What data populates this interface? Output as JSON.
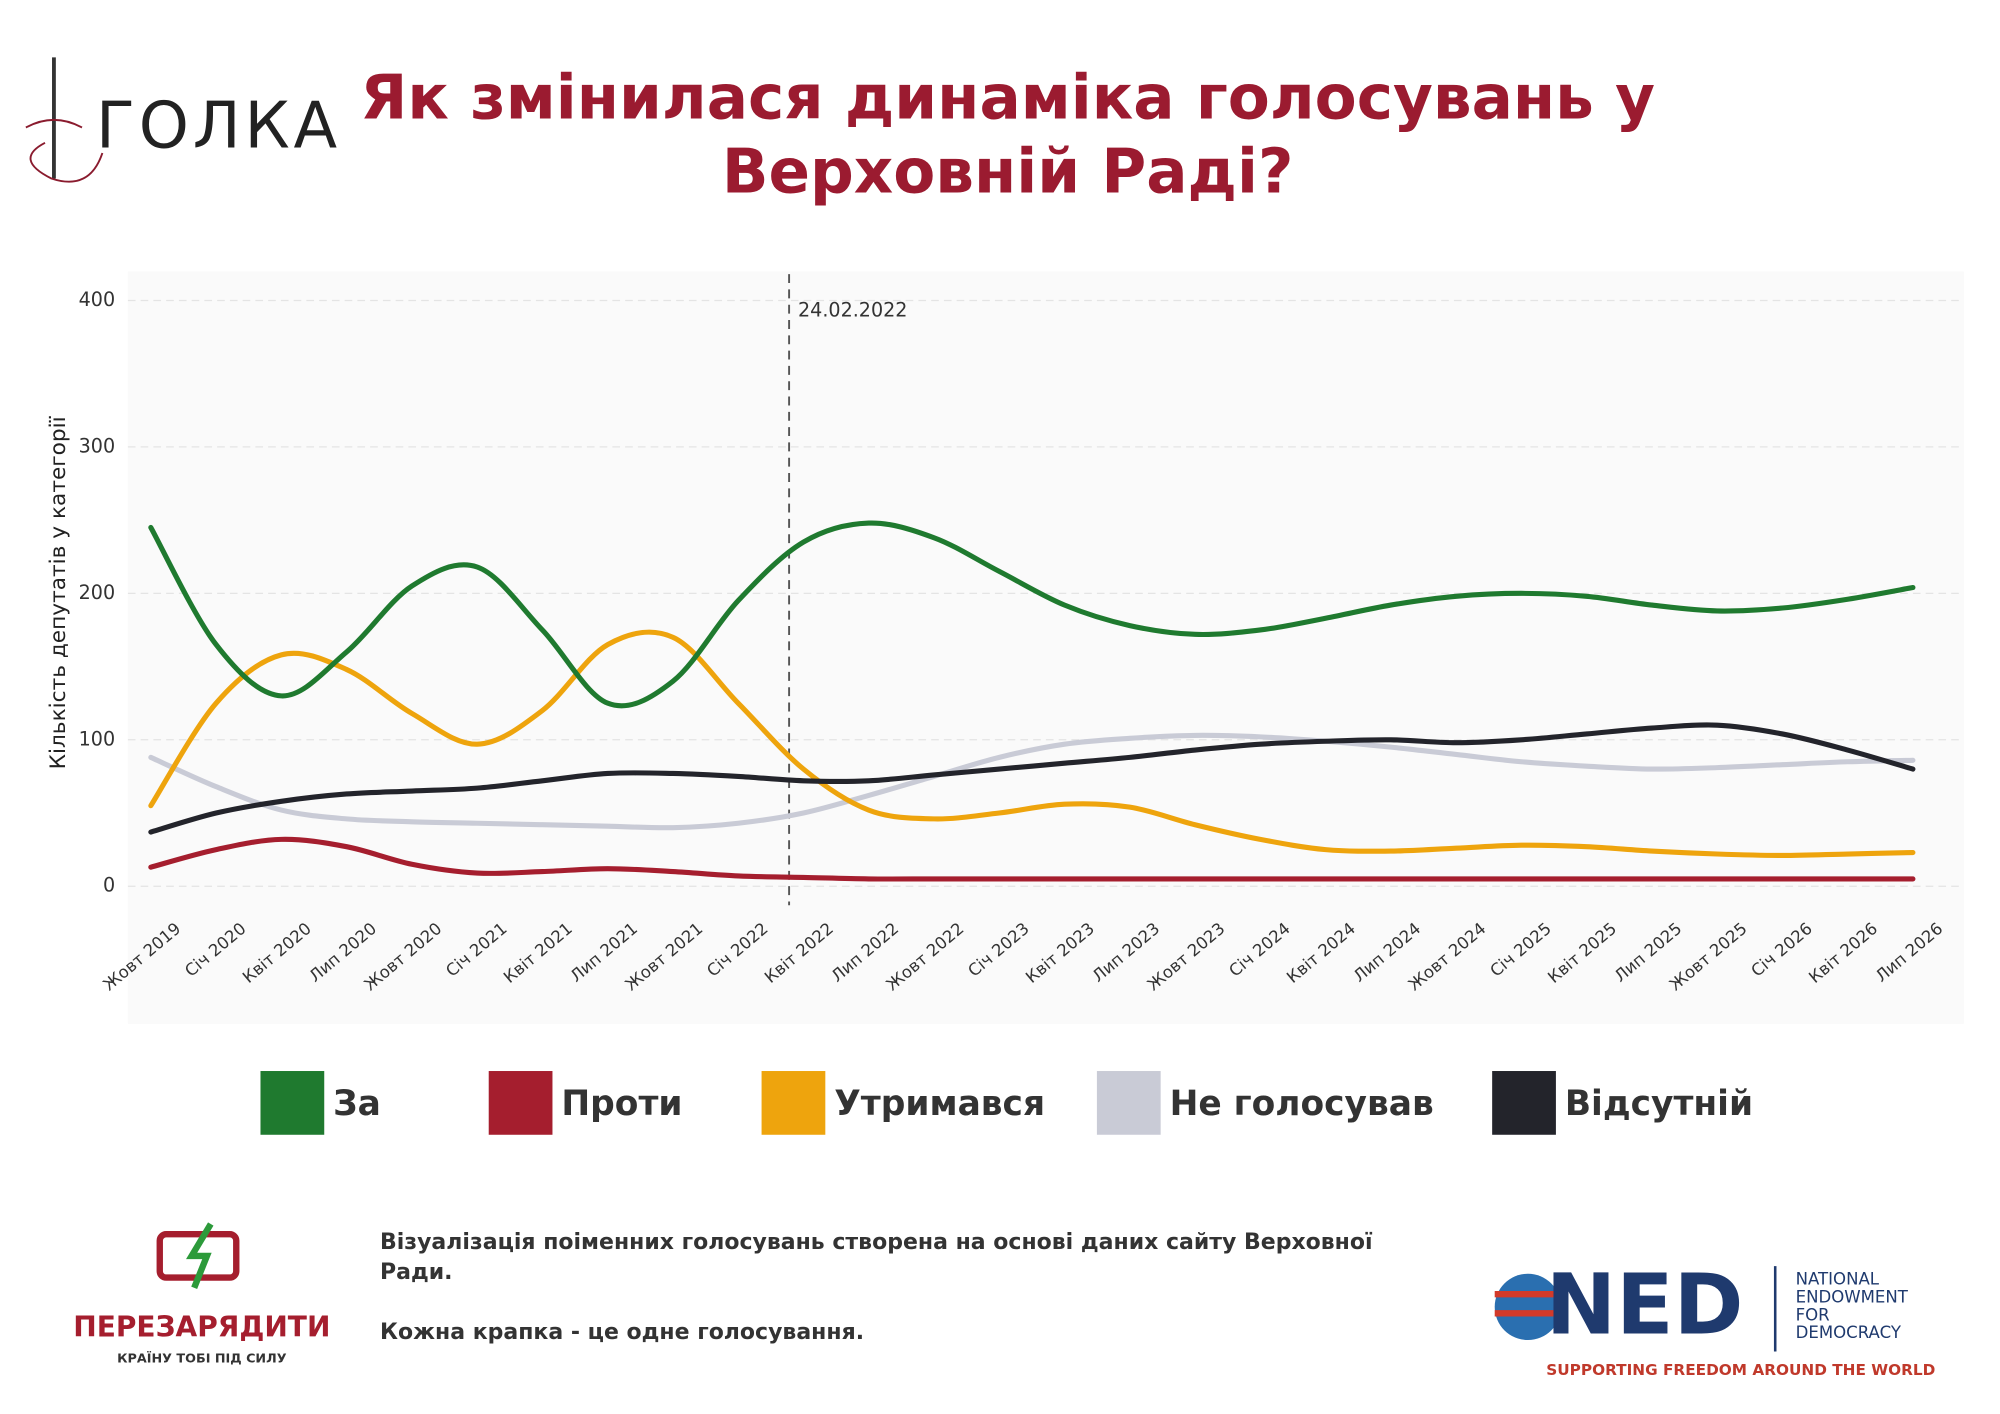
{
  "header": {
    "logo": "ГОЛКА",
    "title_lines": [
      "Як змінилася динаміка голосувань у",
      "Верховній Раді?"
    ]
  },
  "chart_data": {
    "type": "line",
    "annotation": "24.02.2022",
    "y_label": "Кількість депутатів у категорії",
    "categories": [
      "Жовт 2019",
      "Січ 2020",
      "Квіт 2020",
      "Лип 2020",
      "Жовт 2020",
      "Січ 2021",
      "Квіт 2021",
      "Лип 2021",
      "Жовт 2021",
      "Січ 2022",
      "Квіт 2022",
      "Лип 2022",
      "Жовт 2022",
      "Січ 2023",
      "Квіт 2023",
      "Лип 2023",
      "Жовт 2023",
      "Січ 2024",
      "Квіт 2024",
      "Лип 2024",
      "Жовт 2024",
      "Січ 2025",
      "Квіт 2025",
      "Лип 2025",
      "Жовт 2025",
      "Січ 2026",
      "Квіт 2026",
      "Лип 2026"
    ],
    "series": [
      {
        "name": "За",
        "color": "#1f7a2f",
        "values": [
          245,
          165,
          130,
          160,
          205,
          218,
          175,
          125,
          140,
          195,
          235,
          248,
          238,
          215,
          192,
          178,
          172,
          175,
          183,
          192,
          198,
          200,
          198,
          192,
          188,
          190,
          196,
          204
        ]
      },
      {
        "name": "Проти",
        "color": "#a51e2e",
        "values": [
          13,
          25,
          32,
          27,
          15,
          9,
          10,
          12,
          10,
          7,
          6,
          5,
          5,
          5,
          5,
          5,
          5,
          5,
          5,
          5,
          5,
          5,
          5,
          5,
          5,
          5,
          5,
          5
        ]
      },
      {
        "name": "Утримався",
        "color": "#eea40d",
        "values": [
          55,
          125,
          158,
          148,
          118,
          97,
          120,
          165,
          170,
          125,
          80,
          52,
          46,
          50,
          56,
          54,
          42,
          32,
          25,
          24,
          26,
          28,
          27,
          24,
          22,
          21,
          22,
          23
        ]
      },
      {
        "name": "Не голосував",
        "color": "#c9cbd6",
        "values": [
          88,
          68,
          52,
          46,
          44,
          43,
          42,
          41,
          40,
          43,
          50,
          62,
          75,
          88,
          97,
          101,
          103,
          102,
          99,
          95,
          90,
          85,
          82,
          80,
          81,
          83,
          85,
          86
        ]
      },
      {
        "name": "Відсутній",
        "color": "#23242b",
        "values": [
          37,
          50,
          58,
          63,
          65,
          67,
          72,
          77,
          77,
          75,
          72,
          72,
          76,
          80,
          84,
          88,
          93,
          97,
          99,
          100,
          98,
          100,
          104,
          108,
          110,
          104,
          93,
          80
        ]
      }
    ],
    "ylim": [
      -13,
      418
    ],
    "yticks": [
      0,
      100,
      200,
      300,
      400
    ],
    "grid": true,
    "legend": "bottom"
  },
  "footer": {
    "notes": [
      "Візуалізація поіменних голосувань створена на основі даних сайту Верховної Ради.",
      "Кожна крапка - це одне голосування."
    ],
    "partner": "ПЕРЕЗАРЯДИТИ",
    "partner_tagline": "КРАЇНУ ТОБІ ПІД СИЛУ",
    "sponsor": "NED",
    "sponsor_name": [
      "NATIONAL",
      "ENDOWMENT",
      "FOR",
      "DEMOCRACY"
    ],
    "sponsor_tagline": "SUPPORTING FREEDOM AROUND THE WORLD"
  }
}
